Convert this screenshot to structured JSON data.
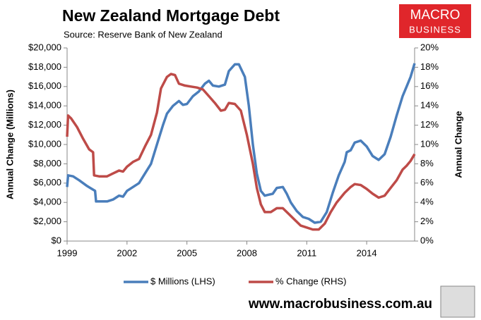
{
  "chart_data": {
    "type": "line",
    "title": "New Zealand Mortgage Debt",
    "subtitle": "Source: Reserve Bank of New Zealand",
    "y_label": "Annual Change (Millions)",
    "y2_label": "Annual Change",
    "logo_text": [
      "MACRO",
      "BUSINESS"
    ],
    "website": "www.macrobusiness.com.au",
    "xlim": [
      1999,
      2016.4
    ],
    "xticks": [
      1999,
      2002,
      2005,
      2008,
      2011,
      2014
    ],
    "ylim": [
      0,
      20000
    ],
    "yticks": [
      {
        "value": 0,
        "label": "$0"
      },
      {
        "value": 2000,
        "label": "$2,000"
      },
      {
        "value": 4000,
        "label": "$4,000"
      },
      {
        "value": 6000,
        "label": "$6,000"
      },
      {
        "value": 8000,
        "label": "$8,000"
      },
      {
        "value": 10000,
        "label": "$10,000"
      },
      {
        "value": 12000,
        "label": "$12,000"
      },
      {
        "value": 14000,
        "label": "$14,000"
      },
      {
        "value": 16000,
        "label": "$16,000"
      },
      {
        "value": 18000,
        "label": "$18,000"
      },
      {
        "value": 20000,
        "label": "$20,000"
      }
    ],
    "y2lim": [
      0,
      20
    ],
    "y2ticks": [
      {
        "value": 0,
        "label": "0%"
      },
      {
        "value": 2,
        "label": "2%"
      },
      {
        "value": 4,
        "label": "4%"
      },
      {
        "value": 6,
        "label": "6%"
      },
      {
        "value": 8,
        "label": "8%"
      },
      {
        "value": 10,
        "label": "10%"
      },
      {
        "value": 12,
        "label": "12%"
      },
      {
        "value": 14,
        "label": "14%"
      },
      {
        "value": 16,
        "label": "16%"
      },
      {
        "value": 18,
        "label": "18%"
      },
      {
        "value": 20,
        "label": "20%"
      }
    ],
    "grid": false,
    "legend": "bottom",
    "series": [
      {
        "name": "$ Millions (LHS)",
        "color": "#4a7ebb",
        "axis": "y",
        "x": [
          1999.0,
          1999.05,
          1999.3,
          1999.6,
          2000.0,
          2000.4,
          2000.45,
          2000.7,
          2001.0,
          2001.3,
          2001.6,
          2001.8,
          2002.0,
          2002.3,
          2002.6,
          2002.9,
          2003.2,
          2003.5,
          2003.8,
          2004.0,
          2004.3,
          2004.6,
          2004.8,
          2005.0,
          2005.3,
          2005.6,
          2005.9,
          2006.1,
          2006.3,
          2006.6,
          2006.9,
          2007.1,
          2007.4,
          2007.6,
          2007.9,
          2008.1,
          2008.3,
          2008.5,
          2008.7,
          2008.9,
          2009.1,
          2009.3,
          2009.5,
          2009.8,
          2010.0,
          2010.2,
          2010.5,
          2010.8,
          2011.1,
          2011.4,
          2011.7,
          2012.0,
          2012.3,
          2012.6,
          2012.9,
          2013.0,
          2013.2,
          2013.4,
          2013.7,
          2014.0,
          2014.3,
          2014.6,
          2014.9,
          2015.2,
          2015.5,
          2015.8,
          2016.0,
          2016.2,
          2016.4
        ],
        "values": [
          5600,
          6800,
          6700,
          6300,
          5700,
          5200,
          4100,
          4100,
          4100,
          4300,
          4700,
          4600,
          5200,
          5600,
          6000,
          7000,
          8000,
          10000,
          12000,
          13200,
          14000,
          14500,
          14100,
          14200,
          15000,
          15500,
          16300,
          16600,
          16100,
          16000,
          16200,
          17600,
          18300,
          18300,
          17000,
          14000,
          10000,
          7000,
          5200,
          4700,
          4800,
          4900,
          5500,
          5600,
          4900,
          4000,
          3100,
          2500,
          2300,
          1900,
          2000,
          3000,
          5000,
          6800,
          8200,
          9200,
          9400,
          10200,
          10400,
          9800,
          8800,
          8400,
          9000,
          10800,
          13000,
          15000,
          16000,
          17000,
          18400
        ]
      },
      {
        "name": "% Change (RHS)",
        "color": "#be4b48",
        "axis": "y2",
        "x": [
          1999.0,
          1999.05,
          1999.2,
          1999.5,
          1999.8,
          2000.1,
          2000.3,
          2000.35,
          2000.6,
          2001.0,
          2001.3,
          2001.6,
          2001.8,
          2002.0,
          2002.3,
          2002.6,
          2002.9,
          2003.2,
          2003.5,
          2003.7,
          2004.0,
          2004.2,
          2004.4,
          2004.6,
          2004.9,
          2005.2,
          2005.5,
          2005.8,
          2006.1,
          2006.4,
          2006.7,
          2006.9,
          2007.1,
          2007.4,
          2007.7,
          2008.0,
          2008.3,
          2008.5,
          2008.7,
          2008.9,
          2009.2,
          2009.5,
          2009.8,
          2010.1,
          2010.4,
          2010.7,
          2011.0,
          2011.3,
          2011.6,
          2011.9,
          2012.2,
          2012.5,
          2012.9,
          2013.2,
          2013.4,
          2013.7,
          2014.0,
          2014.3,
          2014.6,
          2014.9,
          2015.2,
          2015.5,
          2015.8,
          2016.0,
          2016.2,
          2016.4
        ],
        "values": [
          10.8,
          13.0,
          12.7,
          11.8,
          10.6,
          9.5,
          9.2,
          6.8,
          6.7,
          6.7,
          7.0,
          7.3,
          7.2,
          7.7,
          8.2,
          8.5,
          9.8,
          11.0,
          13.3,
          15.8,
          17.0,
          17.3,
          17.2,
          16.3,
          16.1,
          16.0,
          15.9,
          15.7,
          15.0,
          14.3,
          13.5,
          13.6,
          14.3,
          14.2,
          13.5,
          11.0,
          8.0,
          5.5,
          3.8,
          3.0,
          3.0,
          3.4,
          3.4,
          2.8,
          2.2,
          1.6,
          1.4,
          1.2,
          1.2,
          1.8,
          3.0,
          4.0,
          5.0,
          5.6,
          5.9,
          5.8,
          5.4,
          4.9,
          4.5,
          4.7,
          5.5,
          6.3,
          7.4,
          7.8,
          8.3,
          9.0
        ]
      }
    ]
  }
}
